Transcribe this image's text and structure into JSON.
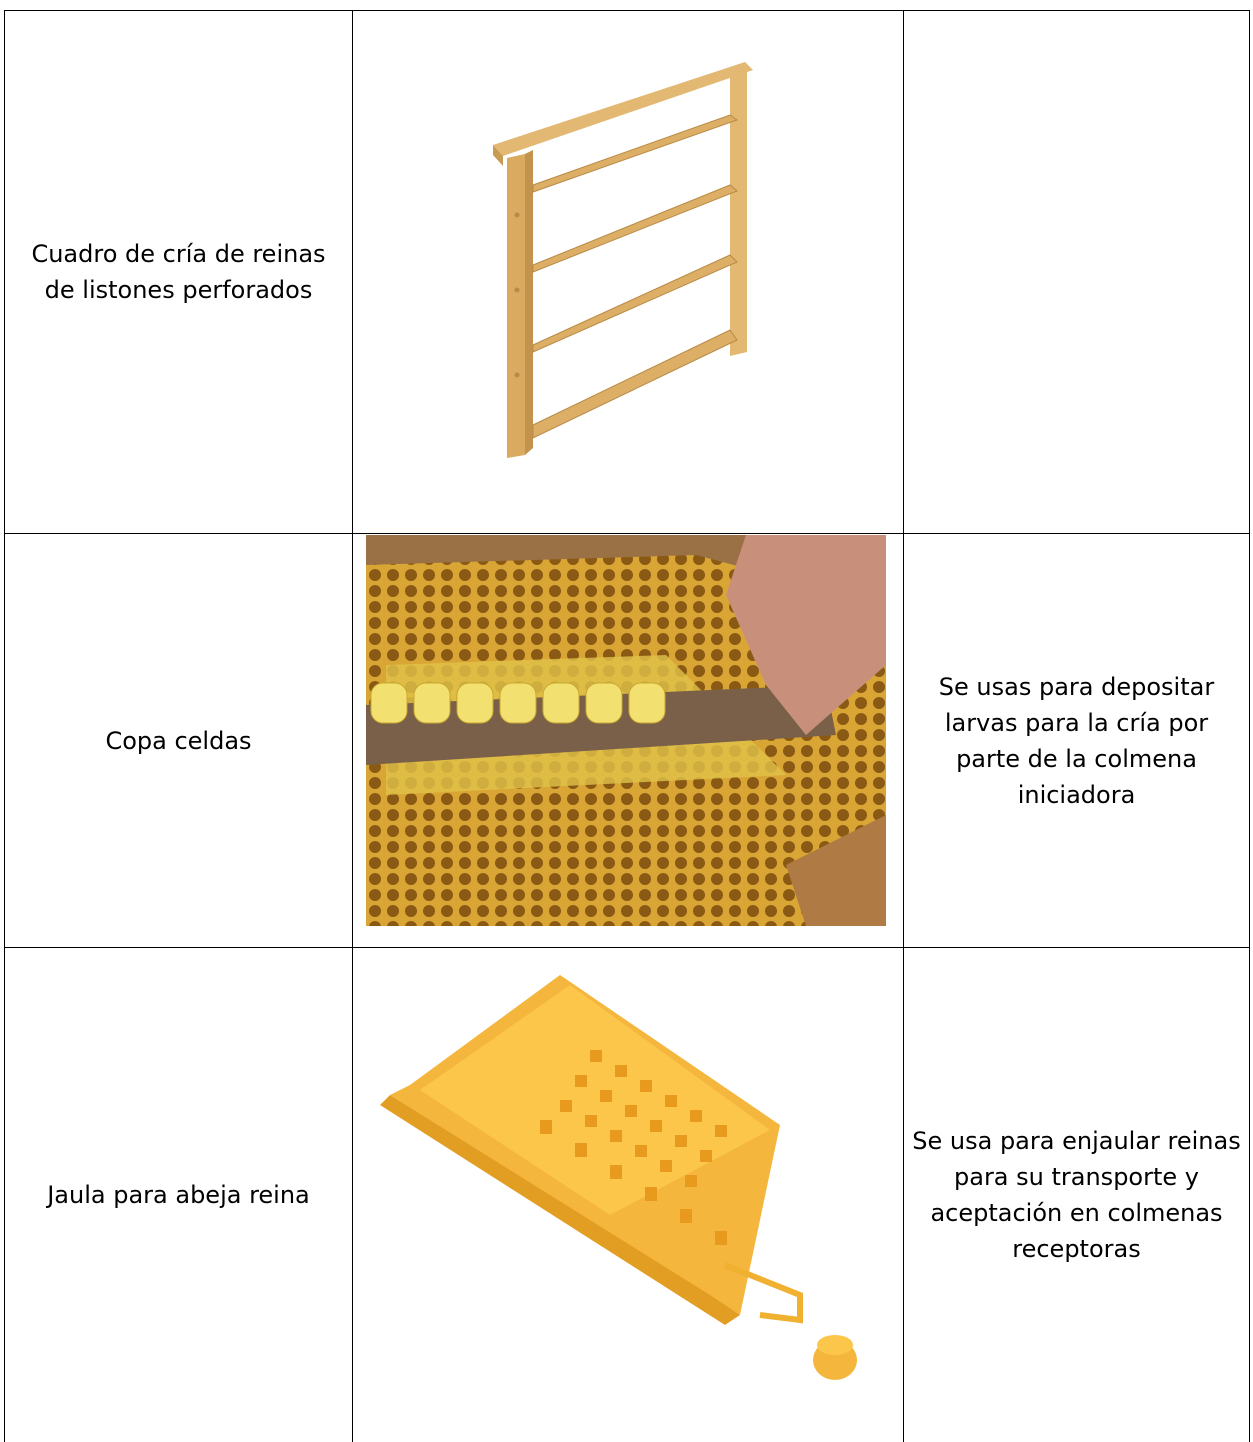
{
  "table": {
    "rows": [
      {
        "name": "Cuadro de cría de reinas de listones perforados"
      },
      {
        "name": "Copa celdas",
        "description": "Se usas para depositar larvas para la cría por parte de la colmena iniciadora"
      },
      {
        "name": "Jaula para abeja reina",
        "description": "Se usa para enjaular reinas para su transporte y aceptación en colmenas receptoras"
      }
    ]
  }
}
